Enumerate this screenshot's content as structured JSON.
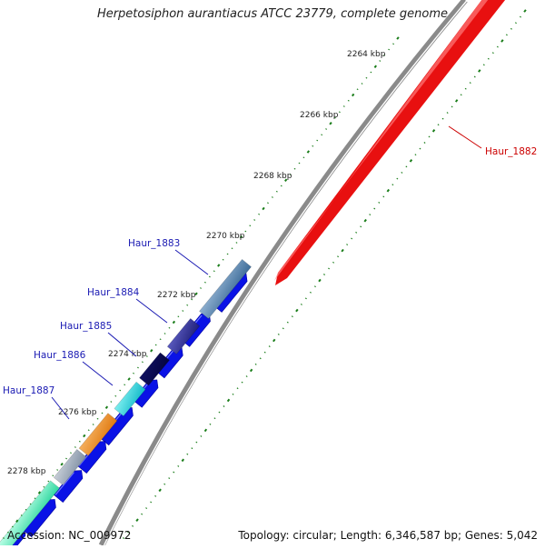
{
  "title": "Herpetosiphon aurantiacus ATCC 23779, complete genome",
  "accession_text": "Accession: NC_009972",
  "topology_text": "Topology: circular; Length: 6,346,587 bp; Genes: 5,042",
  "colors": {
    "backbone": "#8a8a8a",
    "forward_cds": "#0a12e6",
    "highlight_red": "#e81010",
    "tick_green": "#1a7d1a",
    "label_blue": "#1a1ab3",
    "label_red": "#cc0000"
  },
  "ticks": [
    {
      "label": "2264 kbp"
    },
    {
      "label": "2266 kbp"
    },
    {
      "label": "2268 kbp"
    },
    {
      "label": "2270 kbp"
    },
    {
      "label": "2272 kbp"
    },
    {
      "label": "2274 kbp"
    },
    {
      "label": "2276 kbp"
    },
    {
      "label": "2278 kbp"
    }
  ],
  "gene_labels": [
    {
      "name": "Haur_1882",
      "color": "#cc0000"
    },
    {
      "name": "Haur_1883",
      "color": "#1a1ab3"
    },
    {
      "name": "Haur_1884",
      "color": "#1a1ab3"
    },
    {
      "name": "Haur_1885",
      "color": "#1a1ab3"
    },
    {
      "name": "Haur_1886",
      "color": "#1a1ab3"
    },
    {
      "name": "Haur_1887",
      "color": "#1a1ab3"
    }
  ]
}
